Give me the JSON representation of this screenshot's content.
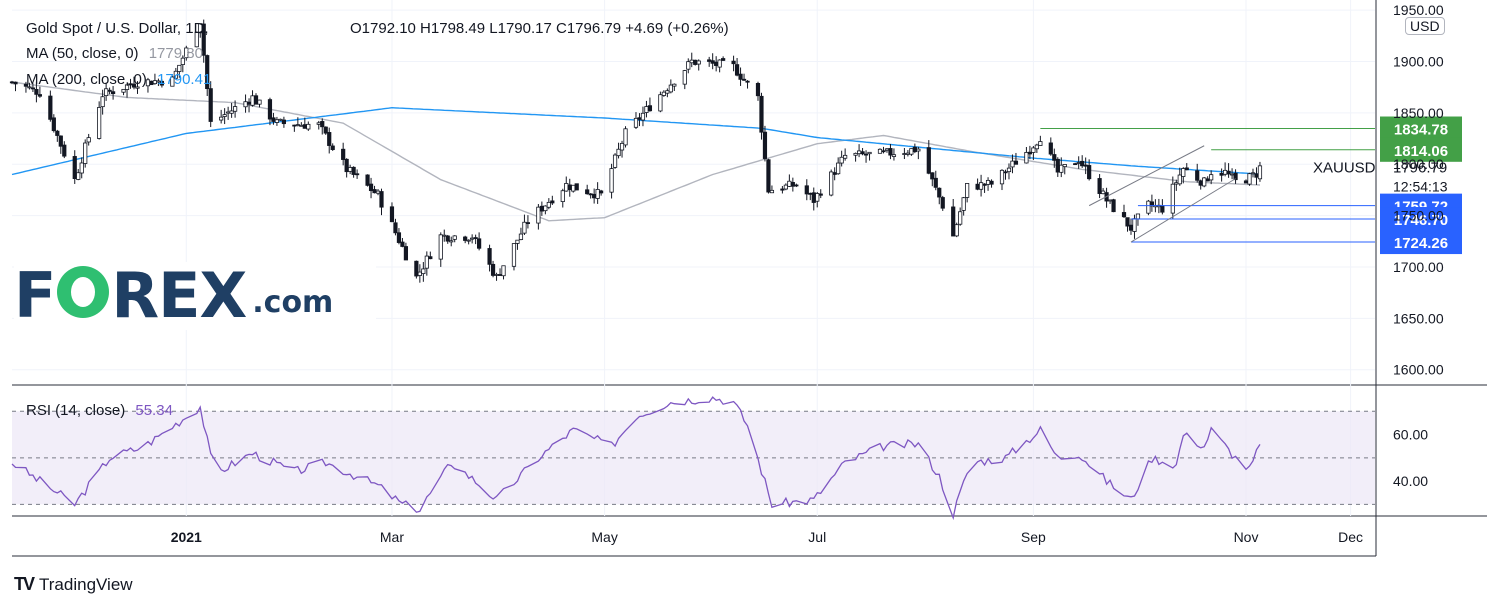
{
  "header": {
    "symbol_title": "Gold Spot / U.S. Dollar, 1D,",
    "ohlc": "O1792.10  H1798.49  L1790.17  C1796.79  +4.69 (+0.26%)",
    "ma50_label": "MA (50, close, 0)",
    "ma50_value": "1779.80",
    "ma200_label": "MA (200, close, 0)",
    "ma200_value": "1790.41",
    "currency": "USD"
  },
  "branding": {
    "watermark_prefix": "F",
    "watermark_suffix": "REX",
    "watermark_domain": ".com",
    "footer": "TradingView"
  },
  "rsi": {
    "label": "RSI (14, close)",
    "value": "55.34"
  },
  "colors": {
    "up": "#131722",
    "down": "#131722",
    "ma200": "#2196f3",
    "ma50": "#b2b5be",
    "rsi": "#7e57c2",
    "rsi_band": "#ede7f6",
    "level_blue": "#2962ff",
    "level_green": "#43a047"
  },
  "chart_data": [
    {
      "type": "candlestick",
      "title": "Gold Spot / U.S. Dollar, 1D",
      "symbol": "XAUUSD",
      "last_price": "1796.79",
      "countdown": "12:54:13",
      "ylim": [
        1590,
        1955
      ],
      "y_ticks": [
        "1950.00",
        "1900.00",
        "1850.00",
        "1800.00",
        "1750.00",
        "1700.00",
        "1650.00",
        "1600.00"
      ],
      "x_ticks": [
        "2021",
        "Mar",
        "May",
        "Jul",
        "Sep",
        "Nov",
        "Dec"
      ],
      "x_dates": [
        "2021-01-01",
        "2021-03-01",
        "2021-05-01",
        "2021-07-01",
        "2021-09-01",
        "2021-11-01",
        "2021-12-01"
      ],
      "x_range": [
        "2020-11-12",
        "2021-12-08"
      ],
      "price_keypoints": [
        [
          "2020-11-12",
          1880
        ],
        [
          "2020-11-20",
          1870
        ],
        [
          "2020-11-30",
          1785
        ],
        [
          "2020-12-08",
          1868
        ],
        [
          "2020-12-18",
          1880
        ],
        [
          "2020-12-28",
          1882
        ],
        [
          "2021-01-05",
          1940
        ],
        [
          "2021-01-08",
          1840
        ],
        [
          "2021-01-20",
          1865
        ],
        [
          "2021-01-27",
          1840
        ],
        [
          "2021-02-08",
          1838
        ],
        [
          "2021-02-16",
          1795
        ],
        [
          "2021-02-25",
          1770
        ],
        [
          "2021-03-08",
          1690
        ],
        [
          "2021-03-15",
          1730
        ],
        [
          "2021-03-24",
          1730
        ],
        [
          "2021-03-31",
          1690
        ],
        [
          "2021-04-09",
          1745
        ],
        [
          "2021-04-20",
          1780
        ],
        [
          "2021-04-30",
          1770
        ],
        [
          "2021-05-07",
          1830
        ],
        [
          "2021-05-17",
          1868
        ],
        [
          "2021-05-26",
          1900
        ],
        [
          "2021-06-07",
          1895
        ],
        [
          "2021-06-14",
          1865
        ],
        [
          "2021-06-17",
          1775
        ],
        [
          "2021-06-25",
          1780
        ],
        [
          "2021-06-30",
          1765
        ],
        [
          "2021-07-09",
          1808
        ],
        [
          "2021-07-20",
          1810
        ],
        [
          "2021-07-30",
          1815
        ],
        [
          "2021-08-06",
          1760
        ],
        [
          "2021-08-09",
          1730
        ],
        [
          "2021-08-13",
          1778
        ],
        [
          "2021-08-20",
          1781
        ],
        [
          "2021-08-31",
          1815
        ],
        [
          "2021-09-03",
          1827
        ],
        [
          "2021-09-08",
          1792
        ],
        [
          "2021-09-14",
          1805
        ],
        [
          "2021-09-22",
          1765
        ],
        [
          "2021-09-29",
          1738
        ],
        [
          "2021-10-04",
          1760
        ],
        [
          "2021-10-08",
          1757
        ],
        [
          "2021-10-14",
          1796
        ],
        [
          "2021-10-20",
          1782
        ],
        [
          "2021-10-22",
          1793
        ],
        [
          "2021-10-26",
          1792
        ],
        [
          "2021-10-29",
          1783
        ],
        [
          "2021-11-02",
          1787
        ],
        [
          "2021-11-04",
          1791
        ],
        [
          "2021-11-05",
          1796.79
        ]
      ],
      "ma200_keypoints": [
        [
          "2020-11-12",
          1790
        ],
        [
          "2021-01-01",
          1830
        ],
        [
          "2021-02-15",
          1849
        ],
        [
          "2021-03-01",
          1855
        ],
        [
          "2021-05-01",
          1845
        ],
        [
          "2021-06-15",
          1835
        ],
        [
          "2021-07-01",
          1826
        ],
        [
          "2021-08-01",
          1816
        ],
        [
          "2021-09-01",
          1806
        ],
        [
          "2021-10-01",
          1798
        ],
        [
          "2021-11-05",
          1790.41
        ]
      ],
      "ma50_keypoints": [
        [
          "2020-11-12",
          1880
        ],
        [
          "2020-12-15",
          1865
        ],
        [
          "2021-01-15",
          1860
        ],
        [
          "2021-02-15",
          1840
        ],
        [
          "2021-03-15",
          1785
        ],
        [
          "2021-04-15",
          1745
        ],
        [
          "2021-05-01",
          1748
        ],
        [
          "2021-06-01",
          1790
        ],
        [
          "2021-07-01",
          1820
        ],
        [
          "2021-07-20",
          1828
        ],
        [
          "2021-08-15",
          1812
        ],
        [
          "2021-09-15",
          1795
        ],
        [
          "2021-10-15",
          1783
        ],
        [
          "2021-11-05",
          1779.8
        ]
      ],
      "level_labels": [
        {
          "value": 1834.78,
          "label": "1834.78",
          "color": "green",
          "line_from": "2021-09-03"
        },
        {
          "value": 1814.06,
          "label": "1814.06",
          "color": "green",
          "line_from": "2021-10-22"
        },
        {
          "value": 1759.72,
          "label": "1759.72",
          "color": "blue",
          "line_from": "2021-10-01"
        },
        {
          "value": 1746.7,
          "label": "1746.70",
          "color": "blue",
          "line_from": "2021-09-29"
        },
        {
          "value": 1724.26,
          "label": "1724.26",
          "color": "blue",
          "line_from": "2021-09-29"
        }
      ],
      "channel": {
        "lower_start": [
          "2021-09-29",
          1724.26
        ],
        "lower_end": [
          "2021-10-29",
          1786
        ],
        "upper_start": [
          "2021-09-17",
          1759.72
        ],
        "upper_end": [
          "2021-10-20",
          1818
        ]
      }
    },
    {
      "type": "line",
      "title": "RSI (14, close)",
      "ylim": [
        25,
        80
      ],
      "y_ticks": [
        "60.00",
        "40.00"
      ],
      "bands": [
        70,
        50,
        30
      ],
      "rsi_keypoints": [
        [
          "2020-11-12",
          48
        ],
        [
          "2020-11-30",
          30
        ],
        [
          "2020-12-10",
          50
        ],
        [
          "2020-12-20",
          55
        ],
        [
          "2021-01-05",
          72
        ],
        [
          "2021-01-09",
          43
        ],
        [
          "2021-01-20",
          52
        ],
        [
          "2021-02-01",
          44
        ],
        [
          "2021-02-10",
          48
        ],
        [
          "2021-02-25",
          38
        ],
        [
          "2021-03-04",
          30
        ],
        [
          "2021-03-09",
          28
        ],
        [
          "2021-03-18",
          48
        ],
        [
          "2021-03-25",
          40
        ],
        [
          "2021-03-31",
          32
        ],
        [
          "2021-04-12",
          50
        ],
        [
          "2021-04-22",
          62
        ],
        [
          "2021-05-03",
          55
        ],
        [
          "2021-05-10",
          68
        ],
        [
          "2021-05-20",
          74
        ],
        [
          "2021-06-01",
          76
        ],
        [
          "2021-06-07",
          74
        ],
        [
          "2021-06-11",
          64
        ],
        [
          "2021-06-18",
          30
        ],
        [
          "2021-06-30",
          32
        ],
        [
          "2021-07-09",
          48
        ],
        [
          "2021-07-20",
          55
        ],
        [
          "2021-07-30",
          56
        ],
        [
          "2021-08-05",
          42
        ],
        [
          "2021-08-09",
          26
        ],
        [
          "2021-08-14",
          48
        ],
        [
          "2021-08-24",
          50
        ],
        [
          "2021-09-03",
          62
        ],
        [
          "2021-09-08",
          50
        ],
        [
          "2021-09-14",
          52
        ],
        [
          "2021-09-22",
          40
        ],
        [
          "2021-09-29",
          32
        ],
        [
          "2021-10-05",
          50
        ],
        [
          "2021-10-12",
          47
        ],
        [
          "2021-10-14",
          60
        ],
        [
          "2021-10-20",
          55
        ],
        [
          "2021-10-22",
          62
        ],
        [
          "2021-10-29",
          50
        ],
        [
          "2021-11-02",
          45
        ],
        [
          "2021-11-05",
          55.34
        ]
      ]
    }
  ]
}
